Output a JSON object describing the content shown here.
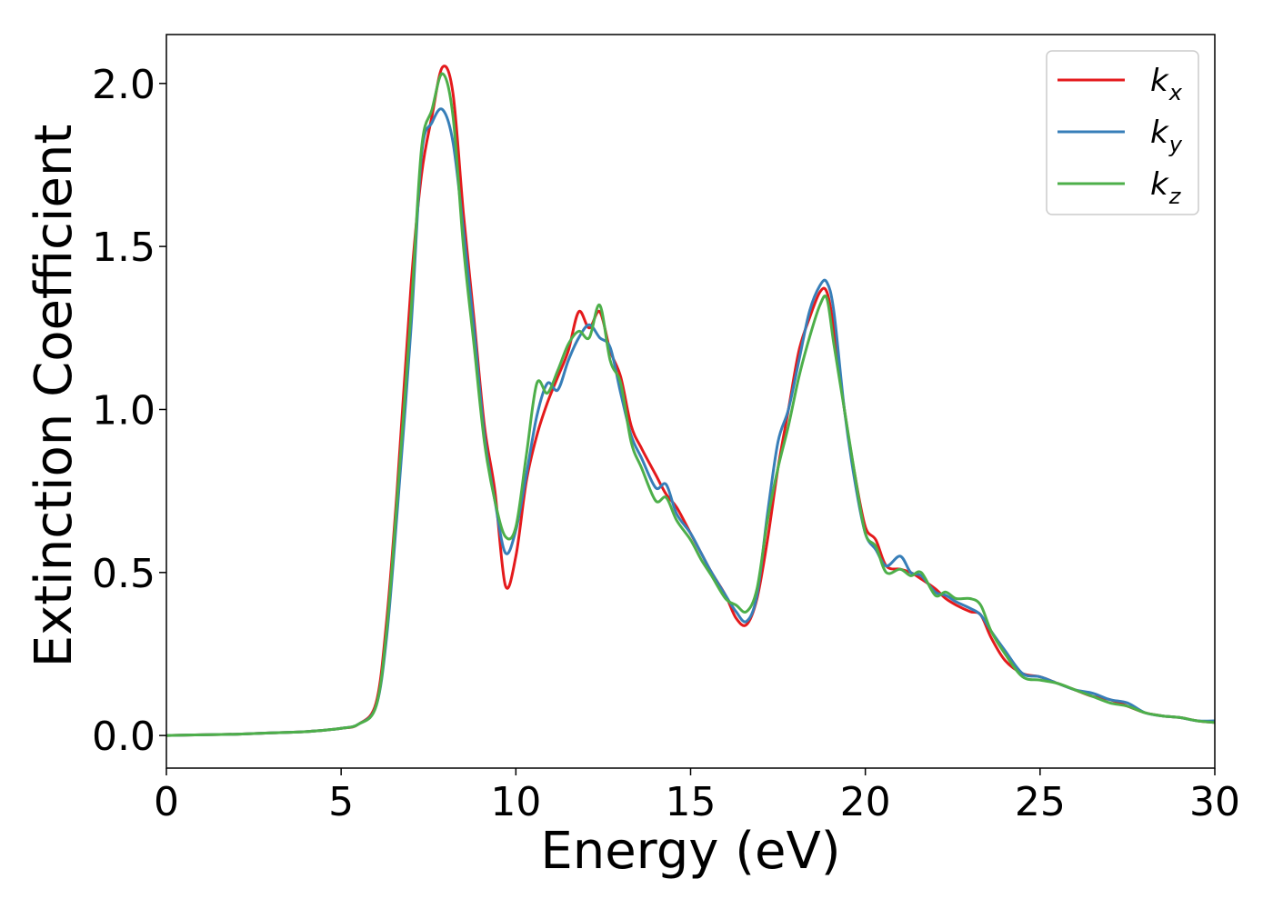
{
  "chart_data": {
    "type": "line",
    "xlabel": "Energy (eV)",
    "ylabel": "Extinction Coefficient",
    "xlim": [
      0,
      30
    ],
    "ylim": [
      -0.1,
      2.15
    ],
    "x_ticks": [
      0,
      5,
      10,
      15,
      20,
      25,
      30
    ],
    "x_tick_labels": [
      "0",
      "5",
      "10",
      "15",
      "20",
      "25",
      "30"
    ],
    "y_ticks": [
      0.0,
      0.5,
      1.0,
      1.5,
      2.0
    ],
    "y_tick_labels": [
      "0.0",
      "0.5",
      "1.0",
      "1.5",
      "2.0"
    ],
    "grid": false,
    "legend_position": "top-right",
    "x": [
      0,
      1,
      2,
      3,
      4,
      5,
      5.5,
      6,
      6.3,
      6.6,
      7,
      7.3,
      7.6,
      7.9,
      8.2,
      8.5,
      8.8,
      9.1,
      9.4,
      9.7,
      10,
      10.3,
      10.6,
      10.9,
      11.2,
      11.5,
      11.8,
      12.1,
      12.4,
      12.7,
      13,
      13.3,
      13.6,
      14,
      14.3,
      14.6,
      15,
      15.3,
      15.6,
      16,
      16.3,
      16.6,
      16.9,
      17.2,
      17.5,
      17.8,
      18.1,
      18.4,
      18.7,
      18.9,
      19.1,
      19.4,
      19.7,
      20,
      20.3,
      20.6,
      21,
      21.3,
      21.6,
      22,
      22.3,
      22.6,
      23,
      23.3,
      23.6,
      24,
      24.5,
      25,
      25.5,
      26,
      26.5,
      27,
      27.5,
      28,
      28.5,
      29,
      29.5,
      30
    ],
    "series": [
      {
        "name": "k_x",
        "color": "#e41a1c",
        "values": [
          0.0,
          0.002,
          0.004,
          0.008,
          0.012,
          0.022,
          0.035,
          0.1,
          0.35,
          0.75,
          1.38,
          1.72,
          1.9,
          2.05,
          1.97,
          1.6,
          1.28,
          0.95,
          0.75,
          0.46,
          0.55,
          0.78,
          0.92,
          1.02,
          1.1,
          1.18,
          1.3,
          1.25,
          1.3,
          1.18,
          1.1,
          0.95,
          0.88,
          0.8,
          0.74,
          0.7,
          0.62,
          0.56,
          0.5,
          0.43,
          0.36,
          0.34,
          0.42,
          0.6,
          0.82,
          1.0,
          1.18,
          1.28,
          1.36,
          1.36,
          1.25,
          1.0,
          0.8,
          0.64,
          0.6,
          0.52,
          0.51,
          0.5,
          0.48,
          0.45,
          0.42,
          0.4,
          0.38,
          0.37,
          0.3,
          0.23,
          0.19,
          0.18,
          0.16,
          0.14,
          0.12,
          0.11,
          0.09,
          0.07,
          0.06,
          0.055,
          0.045,
          0.04
        ]
      },
      {
        "name": "k_y",
        "color": "#377eb8",
        "values": [
          0.0,
          0.002,
          0.004,
          0.008,
          0.012,
          0.022,
          0.035,
          0.09,
          0.3,
          0.68,
          1.25,
          1.78,
          1.88,
          1.92,
          1.82,
          1.55,
          1.25,
          0.92,
          0.72,
          0.56,
          0.63,
          0.8,
          0.98,
          1.08,
          1.06,
          1.15,
          1.22,
          1.26,
          1.22,
          1.19,
          1.05,
          0.92,
          0.85,
          0.76,
          0.77,
          0.68,
          0.62,
          0.56,
          0.5,
          0.43,
          0.38,
          0.35,
          0.43,
          0.68,
          0.9,
          1.0,
          1.15,
          1.3,
          1.38,
          1.39,
          1.3,
          1.0,
          0.78,
          0.62,
          0.57,
          0.52,
          0.55,
          0.5,
          0.49,
          0.44,
          0.43,
          0.41,
          0.39,
          0.37,
          0.32,
          0.26,
          0.19,
          0.18,
          0.16,
          0.14,
          0.13,
          0.11,
          0.1,
          0.07,
          0.06,
          0.055,
          0.045,
          0.045
        ]
      },
      {
        "name": "k_z",
        "color": "#4daf4a",
        "values": [
          0.0,
          0.002,
          0.004,
          0.008,
          0.012,
          0.022,
          0.035,
          0.09,
          0.32,
          0.72,
          1.3,
          1.8,
          1.92,
          2.03,
          1.9,
          1.5,
          1.2,
          0.9,
          0.72,
          0.61,
          0.64,
          0.86,
          1.08,
          1.05,
          1.12,
          1.2,
          1.24,
          1.22,
          1.32,
          1.15,
          1.08,
          0.9,
          0.82,
          0.72,
          0.73,
          0.66,
          0.6,
          0.54,
          0.49,
          0.42,
          0.4,
          0.38,
          0.45,
          0.66,
          0.82,
          0.95,
          1.1,
          1.22,
          1.32,
          1.34,
          1.2,
          1.0,
          0.8,
          0.62,
          0.58,
          0.5,
          0.51,
          0.49,
          0.5,
          0.43,
          0.44,
          0.42,
          0.42,
          0.4,
          0.32,
          0.25,
          0.18,
          0.17,
          0.16,
          0.14,
          0.12,
          0.1,
          0.09,
          0.07,
          0.06,
          0.055,
          0.045,
          0.04
        ]
      }
    ]
  },
  "legend": {
    "entries": [
      {
        "base": "k",
        "sub": "x"
      },
      {
        "base": "k",
        "sub": "y"
      },
      {
        "base": "k",
        "sub": "z"
      }
    ]
  }
}
